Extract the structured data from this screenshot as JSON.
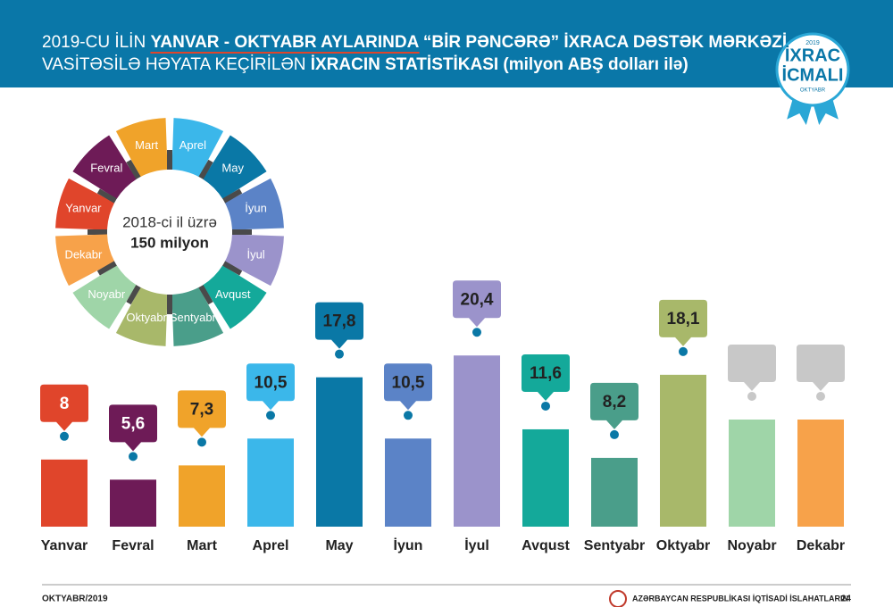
{
  "header": {
    "line1": [
      {
        "text": "2019-CU İLİN ",
        "bold": false
      },
      {
        "text": "YANVAR - OKTYABR AYLARINDA",
        "bold": true
      },
      {
        "text": " “BİR PƏNCƏRƏ” İXRACA DƏSTƏK MƏRKƏZİ",
        "bold": true
      }
    ],
    "line2": [
      {
        "text": "VASİTƏSİLƏ HƏYATA KEÇİRİLƏN ",
        "bold": false
      },
      {
        "text": "İXRACIN STATİSTİKASI",
        "bold": true
      },
      {
        "text": " (milyon ABŞ dolları ilə)",
        "bold": true
      }
    ],
    "badge": {
      "year": "2019",
      "line1": "İXRAC",
      "line2": "İCMALI",
      "month": "OKTYABR"
    }
  },
  "wheel": {
    "center_line1": "2018-ci il üzrə",
    "center_line2": "150 milyon"
  },
  "chart_data": {
    "type": "bar",
    "categories": [
      "Yanvar",
      "Fevral",
      "Mart",
      "Aprel",
      "May",
      "İyun",
      "İyul",
      "Avqust",
      "Sentyabr",
      "Oktyabr",
      "Noyabr",
      "Dekabr"
    ],
    "values": [
      8,
      5.6,
      7.3,
      10.5,
      17.8,
      10.5,
      20.4,
      11.6,
      8.2,
      18.1,
      null,
      null
    ],
    "value_labels": [
      "8",
      "5,6",
      "7,3",
      "10,5",
      "17,8",
      "10,5",
      "20,4",
      "11,6",
      "8,2",
      "18,1",
      null,
      null
    ],
    "colors": [
      "#e0452b",
      "#6e1b57",
      "#f0a32a",
      "#3bb7ea",
      "#0a78a6",
      "#5b83c7",
      "#9b93cb",
      "#14a99a",
      "#4a9e8a",
      "#a8b86a",
      "#9fd5a8",
      "#f7a24a"
    ],
    "value_label_colors": [
      "#ffffff",
      "#ffffff",
      "#222222",
      "#222222",
      "#222222",
      "#222222",
      "#222222",
      "#222222",
      "#222222",
      "#222222",
      null,
      null
    ]
  },
  "footer": {
    "left": "OKTYABR/2019",
    "org": "AZƏRBAYCAN RESPUBLİKASI İQTİSADİ İSLAHATLARIN",
    "page": "24"
  }
}
